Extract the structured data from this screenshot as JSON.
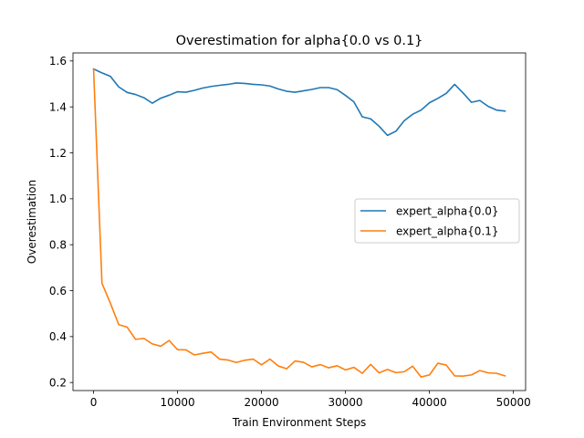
{
  "chart_data": {
    "type": "line",
    "title": "Overestimation for alpha{0.0 vs 0.1}",
    "xlabel": "Train Environment Steps",
    "ylabel": "Overestimation",
    "xlim": [
      -2450,
      51450
    ],
    "ylim": [
      0.165,
      1.635
    ],
    "xticks": [
      0,
      10000,
      20000,
      30000,
      40000,
      50000
    ],
    "yticks": [
      0.2,
      0.4,
      0.6,
      0.8,
      1.0,
      1.2,
      1.4,
      1.6
    ],
    "ytick_labels": [
      "0.2",
      "0.4",
      "0.6",
      "0.8",
      "1.0",
      "1.2",
      "1.4",
      "1.6"
    ],
    "grid": false,
    "legend_position": "center-right",
    "x": [
      0,
      1000,
      2000,
      3000,
      4000,
      5000,
      6000,
      7000,
      8000,
      9000,
      10000,
      11000,
      12000,
      13000,
      14000,
      15000,
      16000,
      17000,
      18000,
      19000,
      20000,
      21000,
      22000,
      23000,
      24000,
      25000,
      26000,
      27000,
      28000,
      29000,
      30000,
      31000,
      32000,
      33000,
      34000,
      35000,
      36000,
      37000,
      38000,
      39000,
      40000,
      41000,
      42000,
      43000,
      44000,
      45000,
      46000,
      47000,
      48000,
      49000
    ],
    "series": [
      {
        "name": "expert_alpha{0.0}",
        "color": "#1f77b4",
        "values": [
          1.565,
          1.548,
          1.533,
          1.487,
          1.463,
          1.454,
          1.44,
          1.416,
          1.438,
          1.451,
          1.466,
          1.464,
          1.472,
          1.482,
          1.489,
          1.494,
          1.498,
          1.504,
          1.502,
          1.498,
          1.496,
          1.491,
          1.478,
          1.468,
          1.464,
          1.47,
          1.476,
          1.484,
          1.484,
          1.475,
          1.45,
          1.422,
          1.357,
          1.348,
          1.316,
          1.276,
          1.294,
          1.34,
          1.368,
          1.386,
          1.418,
          1.437,
          1.459,
          1.498,
          1.461,
          1.42,
          1.428,
          1.402,
          1.386,
          1.382
        ]
      },
      {
        "name": "expert_alpha{0.1}",
        "color": "#ff7f0e",
        "values": [
          1.565,
          0.632,
          0.545,
          0.452,
          0.441,
          0.388,
          0.392,
          0.368,
          0.358,
          0.383,
          0.343,
          0.342,
          0.32,
          0.327,
          0.333,
          0.302,
          0.298,
          0.287,
          0.297,
          0.302,
          0.277,
          0.302,
          0.272,
          0.26,
          0.294,
          0.288,
          0.268,
          0.278,
          0.264,
          0.273,
          0.255,
          0.266,
          0.24,
          0.279,
          0.242,
          0.257,
          0.243,
          0.247,
          0.271,
          0.224,
          0.233,
          0.284,
          0.276,
          0.229,
          0.228,
          0.233,
          0.252,
          0.242,
          0.24,
          0.229
        ]
      }
    ]
  }
}
